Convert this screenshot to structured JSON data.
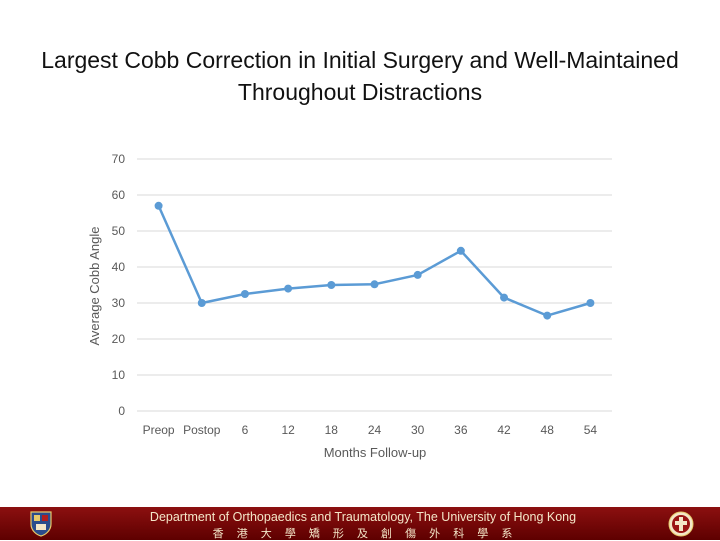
{
  "title": "Largest Cobb Correction in Initial Surgery and Well-Maintained Throughout Distractions",
  "chart_data": {
    "type": "line",
    "title": "Largest Cobb Correction in Initial Surgery and Well-Maintained Throughout Distractions",
    "xlabel": "Months Follow-up",
    "ylabel": "Average Cobb Angle",
    "categories": [
      "Preop",
      "Postop",
      "6",
      "12",
      "18",
      "24",
      "30",
      "36",
      "42",
      "48",
      "54"
    ],
    "series": [
      {
        "name": "Average Cobb Angle",
        "values": [
          57,
          30,
          32.5,
          34,
          35,
          35.2,
          37.8,
          44.5,
          31.5,
          26.5,
          30
        ]
      }
    ],
    "ylim": [
      0,
      70
    ],
    "yticks": [
      0,
      10,
      20,
      30,
      40,
      50,
      60,
      70
    ],
    "grid": true,
    "line_color": "#5b9bd5"
  },
  "footer": {
    "department_en": "Department of Orthopaedics and Traumatology, The University of Hong Kong",
    "department_zh": "香 港 大 學 矯 形 及 創 傷 外 科 學 系",
    "background_color": "#7a0a0a",
    "text_color": "#f4e6c8",
    "left_logo_icon": "university-crest-icon",
    "right_logo_icon": "department-emblem-icon"
  }
}
